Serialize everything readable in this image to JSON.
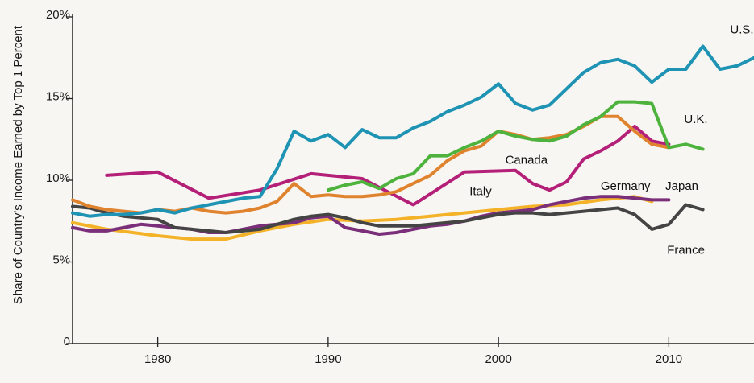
{
  "chart_data": {
    "type": "line",
    "title": "",
    "xlabel": "",
    "ylabel": "Share of Country's Income Earned by Top 1 Percent",
    "xlim": [
      1975,
      2015
    ],
    "ylim": [
      0,
      20
    ],
    "x_ticks": [
      1980,
      1990,
      2000,
      2010
    ],
    "x_tick_labels": [
      "1980",
      "1990",
      "2000",
      "2010"
    ],
    "y_ticks": [
      0,
      5,
      10,
      15,
      20
    ],
    "y_tick_labels": [
      "0",
      "5%",
      "10%",
      "15%",
      "20%"
    ],
    "grid": false,
    "legend": "direct labels",
    "series": [
      {
        "name": "U.S.",
        "color": "#1e93b4",
        "label_at": [
          2013.6,
          19.0
        ],
        "x": [
          1975,
          1976,
          1977,
          1978,
          1979,
          1980,
          1981,
          1982,
          1983,
          1984,
          1985,
          1986,
          1987,
          1988,
          1989,
          1990,
          1991,
          1992,
          1993,
          1994,
          1995,
          1996,
          1997,
          1998,
          1999,
          2000,
          2001,
          2002,
          2003,
          2004,
          2005,
          2006,
          2007,
          2008,
          2009,
          2010,
          2011,
          2012,
          2013,
          2014,
          2015
        ],
        "y": [
          8.0,
          7.8,
          7.9,
          7.9,
          8.0,
          8.2,
          8.0,
          8.3,
          8.5,
          8.7,
          8.9,
          9.0,
          10.7,
          13.0,
          12.4,
          12.8,
          12.0,
          13.1,
          12.6,
          12.6,
          13.2,
          13.6,
          14.2,
          14.6,
          15.1,
          15.9,
          14.7,
          14.3,
          14.6,
          15.6,
          16.6,
          17.2,
          17.4,
          17.0,
          16.0,
          16.8,
          16.8,
          18.2,
          16.8,
          17.0,
          17.5
        ]
      },
      {
        "name": "U.K.",
        "color": "#4db33d",
        "label_at": [
          2010.9,
          13.5
        ],
        "x": [
          1990,
          1991,
          1992,
          1993,
          1994,
          1995,
          1996,
          1997,
          1998,
          1999,
          2000,
          2001,
          2002,
          2003,
          2004,
          2005,
          2006,
          2007,
          2008,
          2009,
          2010,
          2011,
          2012
        ],
        "y": [
          9.4,
          9.7,
          9.9,
          9.5,
          10.1,
          10.4,
          11.5,
          11.5,
          12.0,
          12.4,
          13.0,
          12.7,
          12.5,
          12.4,
          12.7,
          13.4,
          13.9,
          14.8,
          14.8,
          14.7,
          12.0,
          12.2,
          11.9
        ]
      },
      {
        "name": "Canada",
        "color": "#e0832e",
        "label_at": [
          2000.4,
          11.0
        ],
        "x": [
          1975,
          1976,
          1977,
          1978,
          1979,
          1980,
          1981,
          1982,
          1983,
          1984,
          1985,
          1986,
          1987,
          1988,
          1989,
          1990,
          1991,
          1992,
          1993,
          1994,
          1995,
          1996,
          1997,
          1998,
          1999,
          2000,
          2001,
          2002,
          2003,
          2004,
          2005,
          2006,
          2007,
          2008,
          2009,
          2010
        ],
        "y": [
          8.8,
          8.4,
          8.2,
          8.1,
          8.0,
          8.2,
          8.1,
          8.3,
          8.1,
          8.0,
          8.1,
          8.3,
          8.7,
          9.8,
          9.0,
          9.1,
          9.0,
          9.0,
          9.1,
          9.3,
          9.8,
          10.3,
          11.2,
          11.8,
          12.1,
          13.0,
          12.8,
          12.5,
          12.6,
          12.8,
          13.3,
          13.9,
          13.9,
          13.0,
          12.2,
          12.0
        ]
      },
      {
        "name": "Germany",
        "color": "#b41f78",
        "label_at": [
          2006.0,
          9.4
        ],
        "x": [
          1977,
          1980,
          1983,
          1986,
          1989,
          1992,
          1995,
          1998,
          2001,
          2002,
          2003,
          2004,
          2005,
          2006,
          2007,
          2008,
          2009,
          2010
        ],
        "y": [
          10.3,
          10.5,
          8.9,
          9.4,
          10.4,
          10.1,
          8.5,
          10.5,
          10.6,
          9.8,
          9.4,
          9.9,
          11.3,
          11.8,
          12.4,
          13.3,
          12.4,
          12.2
        ]
      },
      {
        "name": "Japan",
        "color": "#7b2f7a",
        "label_at": [
          2009.8,
          9.4
        ],
        "x": [
          1975,
          1976,
          1977,
          1978,
          1979,
          1980,
          1981,
          1982,
          1983,
          1984,
          1985,
          1986,
          1987,
          1988,
          1989,
          1990,
          1991,
          1992,
          1993,
          1994,
          1995,
          1996,
          1997,
          1998,
          1999,
          2000,
          2001,
          2002,
          2003,
          2004,
          2005,
          2006,
          2007,
          2008,
          2009,
          2010
        ],
        "y": [
          7.1,
          6.9,
          6.9,
          7.1,
          7.3,
          7.2,
          7.1,
          7.0,
          6.8,
          6.8,
          7.0,
          7.2,
          7.3,
          7.4,
          7.7,
          7.8,
          7.1,
          6.9,
          6.7,
          6.8,
          7.0,
          7.2,
          7.3,
          7.5,
          7.8,
          8.0,
          8.1,
          8.2,
          8.5,
          8.7,
          8.9,
          9.0,
          9.0,
          8.9,
          8.8,
          8.8
        ]
      },
      {
        "name": "Italy",
        "color": "#f4b229",
        "label_at": [
          1998.3,
          9.1
        ],
        "x": [
          1975,
          1977,
          1980,
          1982,
          1984,
          1986,
          1988,
          1990,
          1992,
          1994,
          1996,
          1998,
          2000,
          2002,
          2004,
          2006,
          2008,
          2009
        ],
        "y": [
          7.4,
          7.0,
          6.6,
          6.4,
          6.4,
          6.9,
          7.3,
          7.6,
          7.5,
          7.6,
          7.8,
          8.0,
          8.2,
          8.4,
          8.5,
          8.8,
          9.0,
          8.7
        ]
      },
      {
        "name": "France",
        "color": "#444444",
        "label_at": [
          2009.9,
          5.5
        ],
        "x": [
          1975,
          1976,
          1977,
          1978,
          1979,
          1980,
          1981,
          1982,
          1983,
          1984,
          1985,
          1986,
          1987,
          1988,
          1989,
          1990,
          1991,
          1992,
          1993,
          1994,
          1995,
          1996,
          1997,
          1998,
          1999,
          2000,
          2001,
          2002,
          2003,
          2004,
          2005,
          2006,
          2007,
          2008,
          2009,
          2010,
          2011,
          2012
        ],
        "y": [
          8.4,
          8.3,
          8.0,
          7.8,
          7.7,
          7.6,
          7.1,
          7.0,
          6.9,
          6.8,
          6.9,
          7.0,
          7.3,
          7.6,
          7.8,
          7.9,
          7.7,
          7.4,
          7.2,
          7.2,
          7.2,
          7.3,
          7.4,
          7.5,
          7.7,
          7.9,
          8.0,
          8.0,
          7.9,
          8.0,
          8.1,
          8.2,
          8.3,
          7.9,
          7.0,
          7.3,
          8.5,
          8.2
        ]
      }
    ]
  }
}
